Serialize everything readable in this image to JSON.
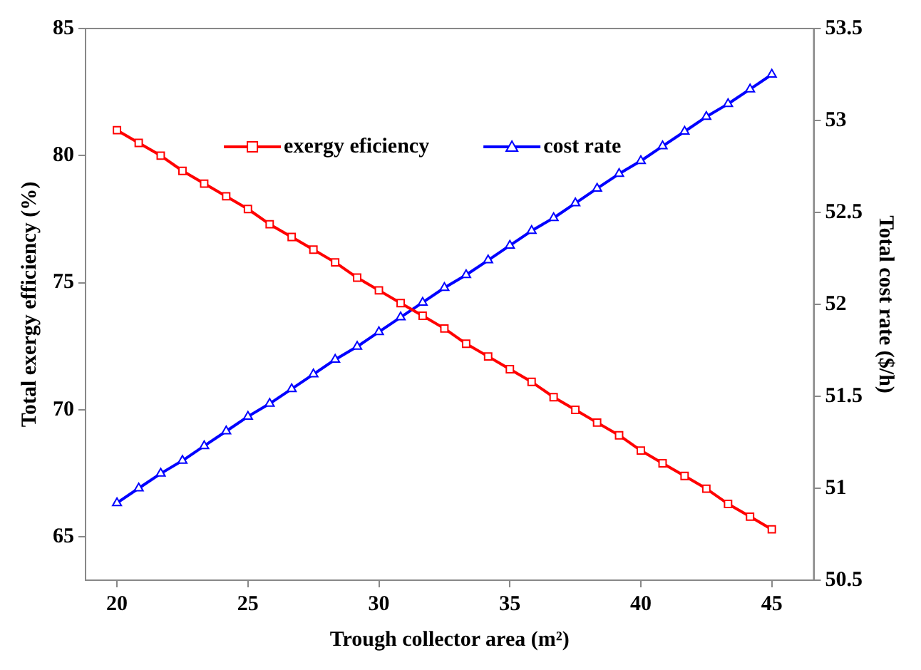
{
  "chart_data": {
    "type": "line",
    "xlabel": "Trough collector area (m²)",
    "ylabel": "Total exergy efficiency (%)",
    "y2label": "Total cost rate ($/h)",
    "x": [
      20,
      20.83,
      21.67,
      22.5,
      23.33,
      24.17,
      25,
      25.83,
      26.67,
      27.5,
      28.33,
      29.17,
      30,
      30.83,
      31.67,
      32.5,
      33.33,
      34.17,
      35,
      35.83,
      36.67,
      37.5,
      38.33,
      39.17,
      40,
      40.83,
      41.67,
      42.5,
      43.33,
      44.17,
      45
    ],
    "series": [
      {
        "name": "exergy eficiency",
        "color": "#ff0000",
        "marker": "square",
        "values": [
          81.0,
          80.5,
          80.0,
          79.4,
          78.9,
          78.4,
          77.9,
          77.3,
          76.8,
          76.3,
          75.8,
          75.2,
          74.7,
          74.2,
          73.7,
          73.2,
          72.6,
          72.1,
          71.6,
          71.1,
          70.5,
          70.0,
          69.5,
          69.0,
          68.4,
          67.9,
          67.4,
          66.9,
          66.3,
          65.8,
          65.3
        ]
      },
      {
        "name": "cost rate",
        "color": "#0000ff",
        "marker": "triangle",
        "axis": "y2",
        "values": [
          50.92,
          51.0,
          51.08,
          51.15,
          51.23,
          51.31,
          51.39,
          51.46,
          51.54,
          51.62,
          51.7,
          51.77,
          51.85,
          51.93,
          52.01,
          52.09,
          52.16,
          52.24,
          52.32,
          52.4,
          52.47,
          52.55,
          52.63,
          52.71,
          52.78,
          52.86,
          52.94,
          53.02,
          53.09,
          53.17,
          53.25
        ]
      }
    ],
    "xlim": [
      18.8,
      46.6
    ],
    "xticks": [
      20,
      25,
      30,
      35,
      40,
      45
    ],
    "ylim": [
      63.3,
      85
    ],
    "yticks": [
      65,
      70,
      75,
      80,
      85
    ],
    "y2lim": [
      50.5,
      53.5
    ],
    "y2ticks": [
      50.5,
      51,
      51.5,
      52,
      52.5,
      53,
      53.5
    ],
    "grid": false,
    "legend": "top",
    "line_style": "solid"
  }
}
